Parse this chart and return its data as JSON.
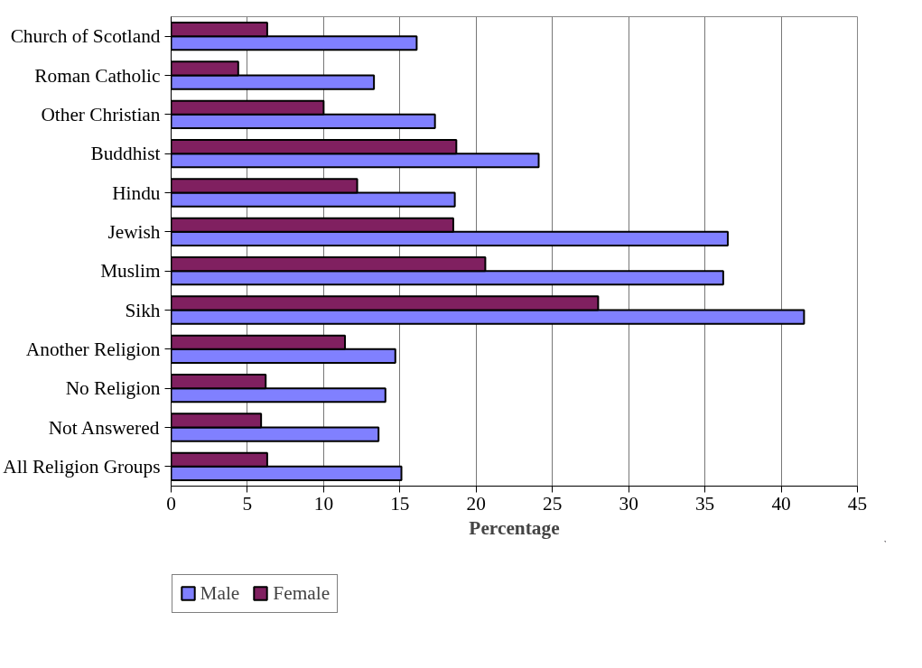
{
  "chart_data": {
    "type": "bar",
    "orientation": "horizontal",
    "xlabel": "Percentage",
    "categories": [
      "Church of Scotland",
      "Roman Catholic",
      "Other Christian",
      "Buddhist",
      "Hindu",
      "Jewish",
      "Muslim",
      "Sikh",
      "Another Religion",
      "No Religion",
      "Not Answered",
      "All Religion Groups"
    ],
    "series": [
      {
        "name": "Male",
        "color": "#8080ff",
        "values": [
          16.1,
          13.3,
          17.3,
          24.1,
          18.6,
          36.5,
          36.2,
          41.5,
          14.7,
          14.05,
          13.6,
          15.1
        ]
      },
      {
        "name": "Female",
        "color": "#802060",
        "values": [
          6.3,
          4.4,
          10.0,
          18.7,
          12.2,
          18.5,
          20.6,
          28.0,
          11.4,
          6.2,
          5.9,
          6.3
        ]
      }
    ],
    "xlim": [
      0,
      45
    ],
    "xticks": [
      0,
      5,
      10,
      15,
      20,
      25,
      30,
      35,
      40,
      45
    ],
    "grid": "x",
    "legend": "bottom"
  }
}
